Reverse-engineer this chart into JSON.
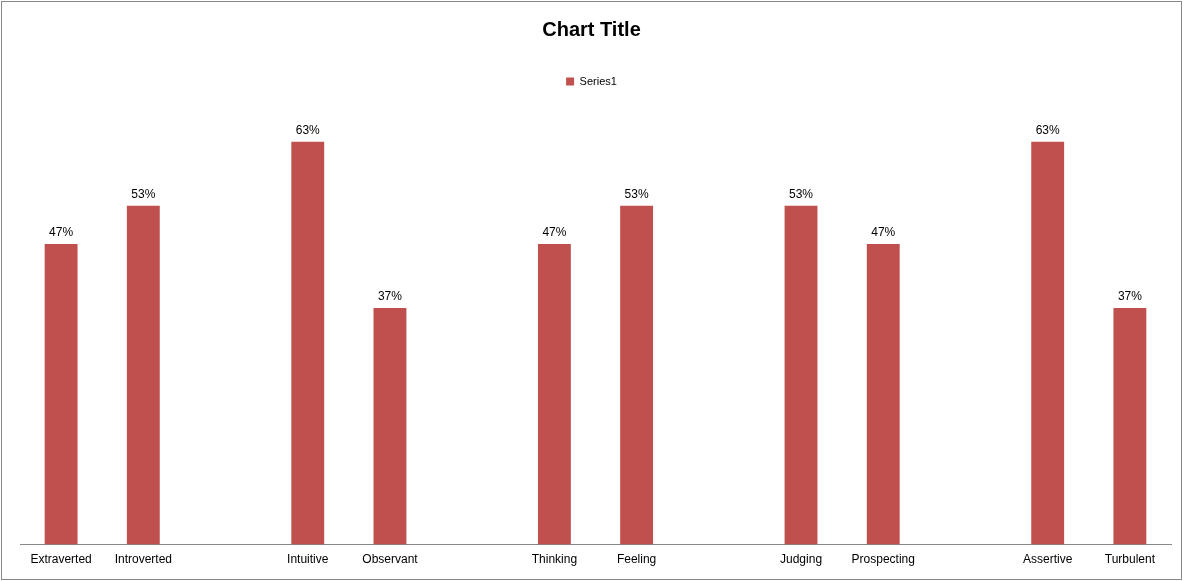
{
  "chart_data": {
    "type": "bar",
    "title": "Chart Title",
    "categories": [
      "Extraverted",
      "Introverted",
      null,
      "Intuitive",
      "Observant",
      null,
      "Thinking",
      "Feeling",
      null,
      "Judging",
      "Prospecting",
      null,
      "Assertive",
      "Turbulent"
    ],
    "series": [
      {
        "name": "Series1",
        "color": "#c0504d",
        "values": [
          47,
          53,
          null,
          63,
          37,
          null,
          47,
          53,
          null,
          53,
          47,
          null,
          63,
          37
        ],
        "value_labels": [
          "47%",
          "53%",
          null,
          "63%",
          "37%",
          null,
          "47%",
          "53%",
          null,
          "53%",
          "47%",
          null,
          "63%",
          "37%"
        ]
      }
    ],
    "legend": "top",
    "grid": false
  }
}
